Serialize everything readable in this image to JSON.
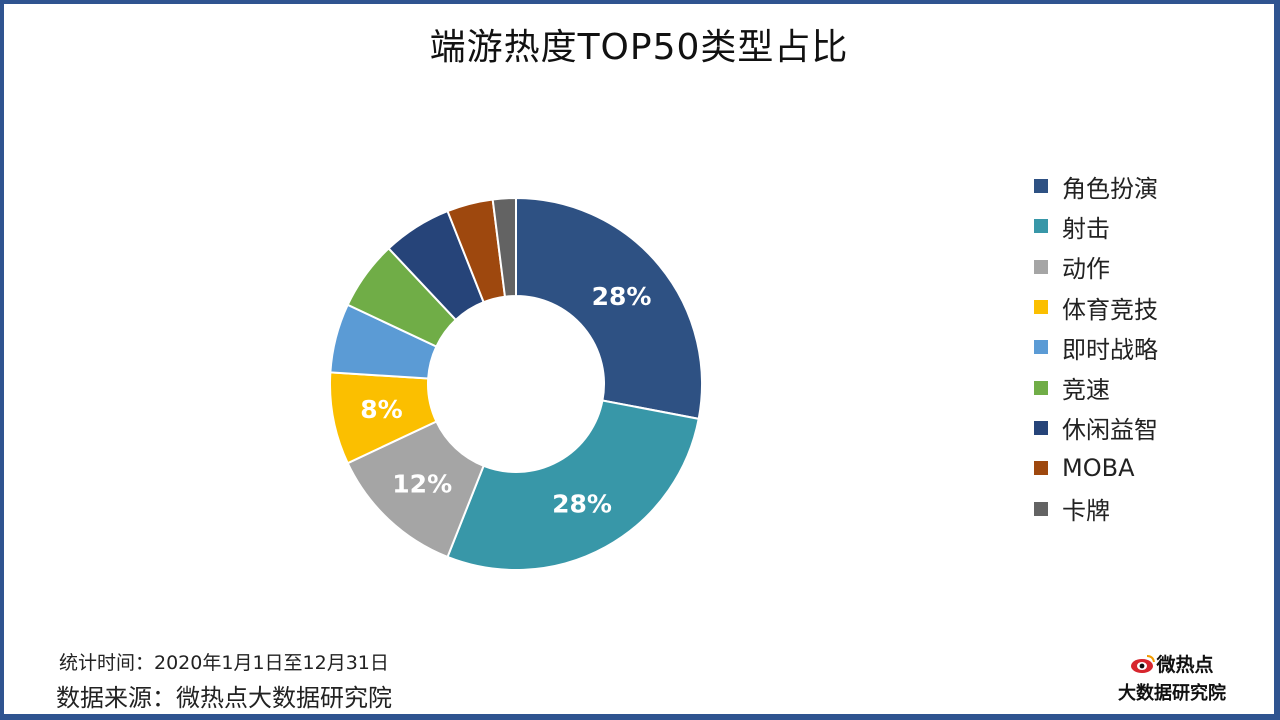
{
  "title": "端游热度TOP50类型占比",
  "footer": {
    "period": "统计时间：2020年1月1日至12月31日",
    "source": "数据来源：微热点大数据研究院"
  },
  "brand": {
    "name": "微热点",
    "subtitle": "大数据研究院",
    "icon": "weibo-eye-icon"
  },
  "chart_data": {
    "type": "pie",
    "variant": "donut",
    "title": "端游热度TOP50类型占比",
    "legend_position": "right",
    "start_angle_deg": 0,
    "direction": "clockwise",
    "slices": [
      {
        "label": "角色扮演",
        "value": 28,
        "data_label": "28%",
        "color": "#2e5183"
      },
      {
        "label": "射击",
        "value": 28,
        "data_label": "28%",
        "color": "#3897a8"
      },
      {
        "label": "动作",
        "value": 12,
        "data_label": "12%",
        "color": "#a5a5a5"
      },
      {
        "label": "体育竞技",
        "value": 8,
        "data_label": "8%",
        "color": "#fbbf00"
      },
      {
        "label": "即时战略",
        "value": 6,
        "data_label": "",
        "color": "#5b9bd5"
      },
      {
        "label": "竞速",
        "value": 6,
        "data_label": "",
        "color": "#70ad47"
      },
      {
        "label": "休闲益智",
        "value": 6,
        "data_label": "",
        "color": "#264479"
      },
      {
        "label": "MOBA",
        "value": 4,
        "data_label": "",
        "color": "#9e480e"
      },
      {
        "label": "卡牌",
        "value": 2,
        "data_label": "",
        "color": "#636363"
      }
    ]
  }
}
